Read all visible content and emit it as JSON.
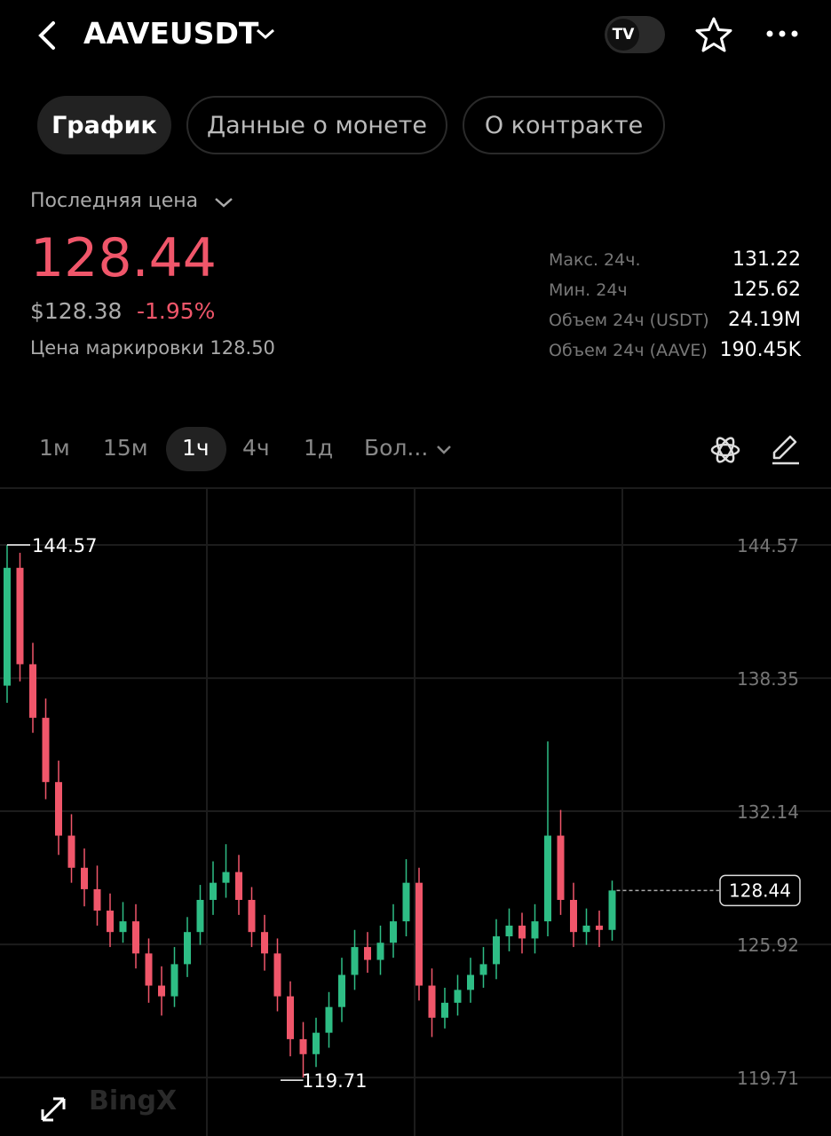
{
  "header": {
    "symbol": "AAVEUSDT"
  },
  "tabs": [
    "График",
    "Данные о монете",
    "О контракте"
  ],
  "price": {
    "selector": "Последняя цена",
    "last": "128.44",
    "usd": "$128.38",
    "change": "-1.95%",
    "mark": "Цена маркировки 128.50"
  },
  "stats": [
    {
      "label": "Макс. 24ч.",
      "value": "131.22"
    },
    {
      "label": "Мин. 24ч",
      "value": "125.62"
    },
    {
      "label": "Объем 24ч (USDT)",
      "value": "24.19M"
    },
    {
      "label": "Объем 24ч (AAVE)",
      "value": "190.45K"
    }
  ],
  "intervals": [
    "1м",
    "15м",
    "1ч",
    "4ч",
    "1д",
    "Бол..."
  ],
  "watermark": "BingX",
  "chart_data": {
    "type": "candlestick",
    "up_color": "#2ebd85",
    "down_color": "#f0566a",
    "ylim": [
      116.98,
      147.22
    ],
    "yticks": [
      119.71,
      125.92,
      132.14,
      138.35,
      144.57
    ],
    "grid": true,
    "high_label": 144.57,
    "low_label": 119.71,
    "last_price": 128.44,
    "open": [
      138,
      143.5,
      139,
      136.5,
      133.5,
      131,
      129.5,
      128.5,
      127.5,
      126.5,
      127,
      125.5,
      124,
      123.5,
      125,
      126.5,
      128,
      128.8,
      129.3,
      128,
      126.5,
      125.5,
      123.5,
      121.5,
      120.8,
      121.8,
      123,
      124.5,
      125.8,
      125.2,
      126,
      127,
      128.8,
      124,
      122.5,
      123.2,
      123.8,
      124.5,
      125,
      126.3,
      126.8,
      126.2,
      127,
      131,
      128,
      126.5,
      126.8,
      126.6
    ],
    "high": [
      144.57,
      144.2,
      140,
      137.4,
      134.5,
      132,
      130.4,
      129.6,
      128.3,
      127.9,
      127.8,
      126.2,
      124.9,
      125.8,
      127.2,
      128.7,
      129.8,
      130.6,
      130.1,
      128.6,
      127.3,
      126.2,
      124.2,
      122.3,
      122.5,
      123.7,
      125.3,
      126.6,
      126.5,
      126.8,
      127.8,
      129.9,
      129.5,
      124.8,
      123.9,
      124.5,
      125.3,
      125.8,
      127.1,
      127.6,
      127.4,
      127.8,
      135.4,
      132.2,
      128.8,
      127.6,
      127.5,
      128.9
    ],
    "low": [
      137.2,
      138.2,
      135.8,
      132.7,
      130.1,
      128.8,
      127.7,
      126.8,
      125.8,
      126,
      124.8,
      123.2,
      122.6,
      123,
      124.4,
      125.9,
      127.3,
      128.1,
      127.3,
      125.8,
      124.7,
      122.8,
      120.7,
      119.71,
      120.2,
      121.1,
      122.3,
      123.8,
      124.6,
      124.5,
      125.3,
      126.3,
      123.3,
      121.6,
      122,
      122.6,
      123.2,
      123.9,
      124.3,
      125.6,
      125.5,
      125.5,
      126.3,
      127.3,
      125.8,
      125.9,
      125.8,
      126.1
    ],
    "close": [
      143.5,
      139,
      136.5,
      133.5,
      131,
      129.5,
      128.5,
      127.5,
      126.5,
      127,
      125.5,
      124,
      123.5,
      125,
      126.5,
      128,
      128.8,
      129.3,
      128,
      126.5,
      125.5,
      123.5,
      121.5,
      120.8,
      121.8,
      123,
      124.5,
      125.8,
      125.2,
      126,
      127,
      128.8,
      124,
      122.5,
      123.2,
      123.8,
      124.5,
      125,
      126.3,
      126.8,
      126.2,
      127,
      131,
      128,
      126.5,
      126.8,
      126.6,
      128.44
    ]
  }
}
